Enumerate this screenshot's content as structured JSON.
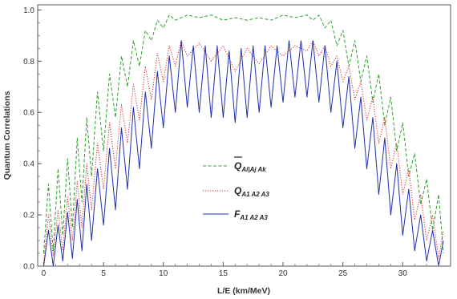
{
  "chart_data": {
    "type": "line",
    "title": "",
    "xlabel": "L/E (km/MeV)",
    "ylabel": "Quantum Correlations",
    "xlim": [
      -0.5,
      34
    ],
    "ylim": [
      0,
      1.02
    ],
    "x_ticks": [
      0,
      5,
      10,
      15,
      20,
      25,
      30
    ],
    "x_tick_labels": [
      "0",
      "5",
      "10",
      "15",
      "20",
      "25",
      "30"
    ],
    "y_ticks": [
      0,
      0.2,
      0.4,
      0.6,
      0.8,
      1.0
    ],
    "y_tick_labels": [
      "0.0",
      "0.2",
      "0.4",
      "0.6",
      "0.8",
      "1.0"
    ],
    "grid": false,
    "legend_position": "center-left",
    "series": [
      {
        "name": "Q̄ Ai|Aj Ak",
        "legend_main": "Q",
        "legend_sub": "Ai|Aj Ak",
        "color": "#2ca02c",
        "style": "dashed",
        "x": [
          0.0,
          0.4,
          0.8,
          1.2,
          1.6,
          2.0,
          2.4,
          2.8,
          3.2,
          3.6,
          4.0,
          4.5,
          5.0,
          5.5,
          6.0,
          6.5,
          7.0,
          7.5,
          8.0,
          8.5,
          9.0,
          9.5,
          10.0,
          10.5,
          11.0,
          12.0,
          13.0,
          14.0,
          15.0,
          16.0,
          17.0,
          18.0,
          19.0,
          20.0,
          21.0,
          22.0,
          22.5,
          23.0,
          23.5,
          24.0,
          24.5,
          25.0,
          25.5,
          26.0,
          26.5,
          27.0,
          27.5,
          28.0,
          28.5,
          29.0,
          29.5,
          30.0,
          30.5,
          31.0,
          31.5,
          32.0,
          32.5,
          33.0,
          33.4
        ],
        "y": [
          0.05,
          0.32,
          0.06,
          0.38,
          0.12,
          0.42,
          0.15,
          0.5,
          0.25,
          0.58,
          0.35,
          0.68,
          0.45,
          0.75,
          0.58,
          0.82,
          0.7,
          0.88,
          0.78,
          0.92,
          0.88,
          0.96,
          0.93,
          0.98,
          0.96,
          0.98,
          0.97,
          0.98,
          0.96,
          0.97,
          0.96,
          0.97,
          0.96,
          0.98,
          0.97,
          0.98,
          0.96,
          0.98,
          0.93,
          0.96,
          0.86,
          0.92,
          0.78,
          0.88,
          0.72,
          0.82,
          0.64,
          0.75,
          0.55,
          0.66,
          0.45,
          0.56,
          0.35,
          0.44,
          0.24,
          0.34,
          0.14,
          0.28,
          0.05
        ]
      },
      {
        "name": "Q A1 A2 A3",
        "legend_main": "Q",
        "legend_sub": "A1 A2 A3",
        "color": "#d62728",
        "style": "dotted",
        "x": [
          0.0,
          0.4,
          0.8,
          1.2,
          1.6,
          2.0,
          2.4,
          2.8,
          3.2,
          3.6,
          4.0,
          4.5,
          5.0,
          5.5,
          6.0,
          6.5,
          7.0,
          7.5,
          8.0,
          8.5,
          9.0,
          9.5,
          10.0,
          10.5,
          11.0,
          11.5,
          12.0,
          13.0,
          14.0,
          15.0,
          16.0,
          17.0,
          18.0,
          19.0,
          20.0,
          21.0,
          22.0,
          22.5,
          23.0,
          23.5,
          24.0,
          24.5,
          25.0,
          25.5,
          26.0,
          26.5,
          27.0,
          27.5,
          28.0,
          28.5,
          29.0,
          29.5,
          30.0,
          30.5,
          31.0,
          31.5,
          32.0,
          32.5,
          33.0,
          33.4
        ],
        "y": [
          0.02,
          0.2,
          0.04,
          0.22,
          0.06,
          0.27,
          0.1,
          0.33,
          0.15,
          0.4,
          0.22,
          0.48,
          0.3,
          0.56,
          0.38,
          0.63,
          0.48,
          0.71,
          0.57,
          0.78,
          0.65,
          0.83,
          0.72,
          0.86,
          0.78,
          0.88,
          0.82,
          0.87,
          0.8,
          0.86,
          0.76,
          0.85,
          0.79,
          0.86,
          0.82,
          0.86,
          0.84,
          0.88,
          0.82,
          0.86,
          0.78,
          0.82,
          0.72,
          0.78,
          0.65,
          0.72,
          0.57,
          0.66,
          0.48,
          0.58,
          0.38,
          0.48,
          0.28,
          0.38,
          0.18,
          0.28,
          0.1,
          0.2,
          0.03,
          0.14
        ]
      },
      {
        "name": "F A1 A2 A3",
        "legend_main": "F",
        "legend_sub": "A1 A2 A3",
        "color": "#1f2fb0",
        "style": "solid",
        "x": [
          0.0,
          0.4,
          0.8,
          1.2,
          1.6,
          2.0,
          2.4,
          2.8,
          3.2,
          3.6,
          4.0,
          4.5,
          5.0,
          5.5,
          6.0,
          6.5,
          7.0,
          7.5,
          8.0,
          8.5,
          9.0,
          9.5,
          10.0,
          10.5,
          11.0,
          11.5,
          12.0,
          12.5,
          13.0,
          13.5,
          14.0,
          14.5,
          15.0,
          15.5,
          16.0,
          16.5,
          17.0,
          17.5,
          18.0,
          18.5,
          19.0,
          19.5,
          20.0,
          20.5,
          21.0,
          21.5,
          22.0,
          22.5,
          23.0,
          23.5,
          24.0,
          24.5,
          25.0,
          25.5,
          26.0,
          26.5,
          27.0,
          27.5,
          28.0,
          28.5,
          29.0,
          29.5,
          30.0,
          30.5,
          31.0,
          31.5,
          32.0,
          32.5,
          33.0,
          33.4
        ],
        "y": [
          0.0,
          0.14,
          0.0,
          0.16,
          0.02,
          0.21,
          0.03,
          0.26,
          0.06,
          0.32,
          0.1,
          0.38,
          0.16,
          0.46,
          0.22,
          0.54,
          0.3,
          0.62,
          0.38,
          0.68,
          0.46,
          0.76,
          0.54,
          0.82,
          0.6,
          0.88,
          0.62,
          0.86,
          0.6,
          0.86,
          0.58,
          0.86,
          0.58,
          0.84,
          0.56,
          0.85,
          0.58,
          0.86,
          0.6,
          0.86,
          0.62,
          0.86,
          0.64,
          0.88,
          0.66,
          0.88,
          0.66,
          0.88,
          0.64,
          0.86,
          0.6,
          0.8,
          0.54,
          0.74,
          0.46,
          0.66,
          0.38,
          0.58,
          0.28,
          0.5,
          0.2,
          0.4,
          0.12,
          0.3,
          0.06,
          0.2,
          0.02,
          0.14,
          0.0,
          0.1
        ]
      }
    ]
  }
}
